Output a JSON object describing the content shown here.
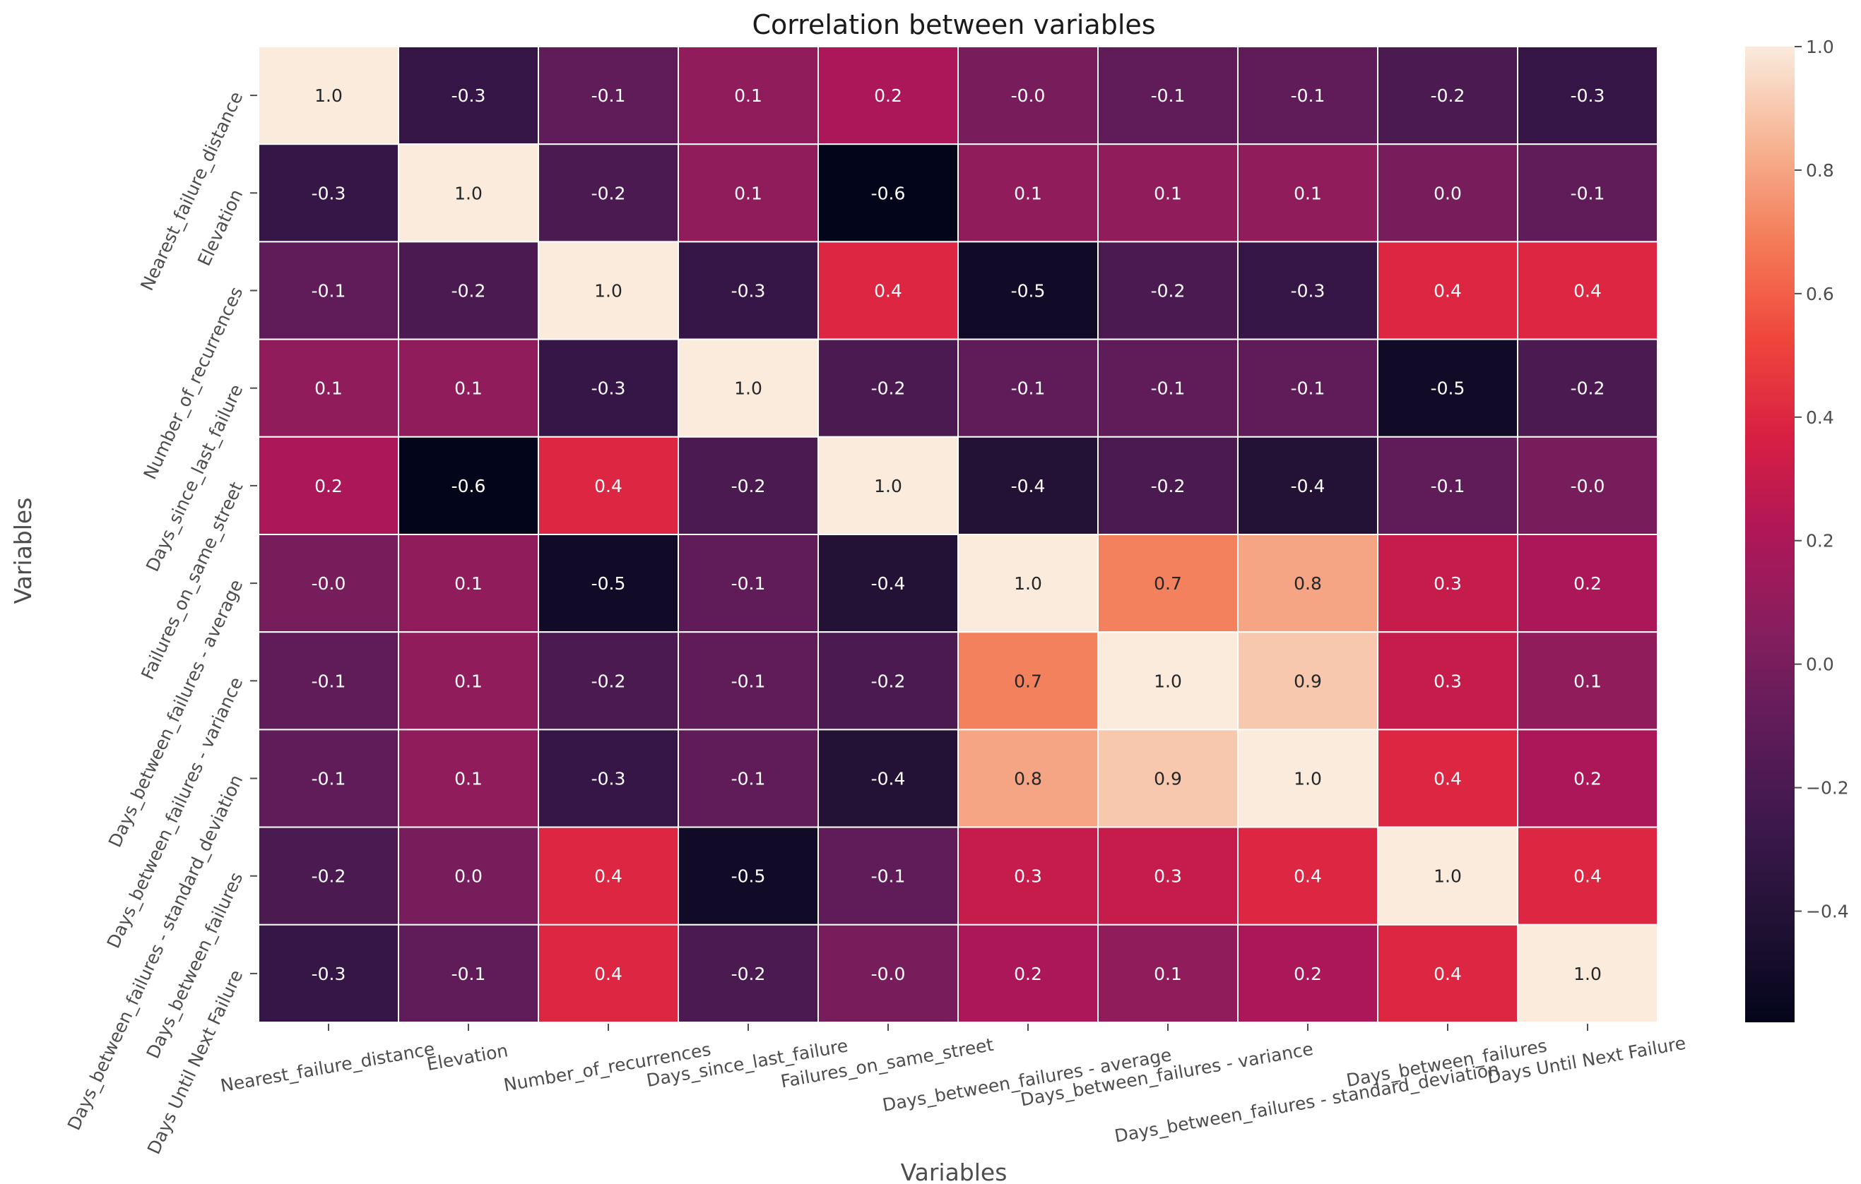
{
  "chart_data": {
    "type": "heatmap",
    "title": "Correlation between variables",
    "xlabel": "Variables",
    "ylabel": "Variables",
    "x_categories": [
      "Nearest_failure_distance",
      "Elevation",
      "Number_of_recurrences",
      "Days_since_last_failure",
      "Failures_on_same_street",
      "Days_between_failures - average",
      "Days_between_failures - variance",
      "Days_between_failures - standard_deviation",
      "Days_between_failures",
      "Days Until Next Failure"
    ],
    "y_categories": [
      "Nearest_failure_distance",
      "Elevation",
      "Number_of_recurrences",
      "Days_since_last_failure",
      "Failures_on_same_street",
      "Days_between_failures - average",
      "Days_between_failures - variance",
      "Days_between_failures - standard_deviation",
      "Days_between_failures",
      "Days Until Next Failure"
    ],
    "values": [
      [
        1.0,
        -0.3,
        -0.1,
        0.1,
        0.2,
        -0.0,
        -0.1,
        -0.1,
        -0.2,
        -0.3
      ],
      [
        -0.3,
        1.0,
        -0.2,
        0.1,
        -0.6,
        0.1,
        0.1,
        0.1,
        0.0,
        -0.1
      ],
      [
        -0.1,
        -0.2,
        1.0,
        -0.3,
        0.4,
        -0.5,
        -0.2,
        -0.3,
        0.4,
        0.4
      ],
      [
        0.1,
        0.1,
        -0.3,
        1.0,
        -0.2,
        -0.1,
        -0.1,
        -0.1,
        -0.5,
        -0.2
      ],
      [
        0.2,
        -0.6,
        0.4,
        -0.2,
        1.0,
        -0.4,
        -0.2,
        -0.4,
        -0.1,
        -0.0
      ],
      [
        -0.0,
        0.1,
        -0.5,
        -0.1,
        -0.4,
        1.0,
        0.7,
        0.8,
        0.3,
        0.2
      ],
      [
        -0.1,
        0.1,
        -0.2,
        -0.1,
        -0.2,
        0.7,
        1.0,
        0.9,
        0.3,
        0.1
      ],
      [
        -0.1,
        0.1,
        -0.3,
        -0.1,
        -0.4,
        0.8,
        0.9,
        1.0,
        0.4,
        0.2
      ],
      [
        -0.2,
        0.0,
        0.4,
        -0.5,
        -0.1,
        0.3,
        0.3,
        0.4,
        1.0,
        0.4
      ],
      [
        -0.3,
        -0.1,
        0.4,
        -0.2,
        -0.0,
        0.2,
        0.1,
        0.2,
        0.4,
        1.0
      ]
    ],
    "cell_labels": [
      [
        "1.0",
        "-0.3",
        "-0.1",
        "0.1",
        "0.2",
        "-0.0",
        "-0.1",
        "-0.1",
        "-0.2",
        "-0.3"
      ],
      [
        "-0.3",
        "1.0",
        "-0.2",
        "0.1",
        "-0.6",
        "0.1",
        "0.1",
        "0.1",
        "0.0",
        "-0.1"
      ],
      [
        "-0.1",
        "-0.2",
        "1.0",
        "-0.3",
        "0.4",
        "-0.5",
        "-0.2",
        "-0.3",
        "0.4",
        "0.4"
      ],
      [
        "0.1",
        "0.1",
        "-0.3",
        "1.0",
        "-0.2",
        "-0.1",
        "-0.1",
        "-0.1",
        "-0.5",
        "-0.2"
      ],
      [
        "0.2",
        "-0.6",
        "0.4",
        "-0.2",
        "1.0",
        "-0.4",
        "-0.2",
        "-0.4",
        "-0.1",
        "-0.0"
      ],
      [
        "-0.0",
        "0.1",
        "-0.5",
        "-0.1",
        "-0.4",
        "1.0",
        "0.7",
        "0.8",
        "0.3",
        "0.2"
      ],
      [
        "-0.1",
        "0.1",
        "-0.2",
        "-0.1",
        "-0.2",
        "0.7",
        "1.0",
        "0.9",
        "0.3",
        "0.1"
      ],
      [
        "-0.1",
        "0.1",
        "-0.3",
        "-0.1",
        "-0.4",
        "0.8",
        "0.9",
        "1.0",
        "0.4",
        "0.2"
      ],
      [
        "-0.2",
        "0.0",
        "0.4",
        "-0.5",
        "-0.1",
        "0.3",
        "0.3",
        "0.4",
        "1.0",
        "0.4"
      ],
      [
        "-0.3",
        "-0.1",
        "0.4",
        "-0.2",
        "-0.0",
        "0.2",
        "0.1",
        "0.2",
        "0.4",
        "1.0"
      ]
    ],
    "colorscale": "rocket",
    "vmin": -0.58,
    "vmax": 1.0,
    "colorbar_ticks": [
      1.0,
      0.8,
      0.6,
      0.4,
      0.2,
      0.0,
      -0.2,
      -0.4
    ],
    "colorbar_tick_labels": [
      "1.0",
      "0.8",
      "0.6",
      "0.4",
      "0.2",
      "0.0",
      "−0.2",
      "−0.4"
    ],
    "grid": true
  }
}
